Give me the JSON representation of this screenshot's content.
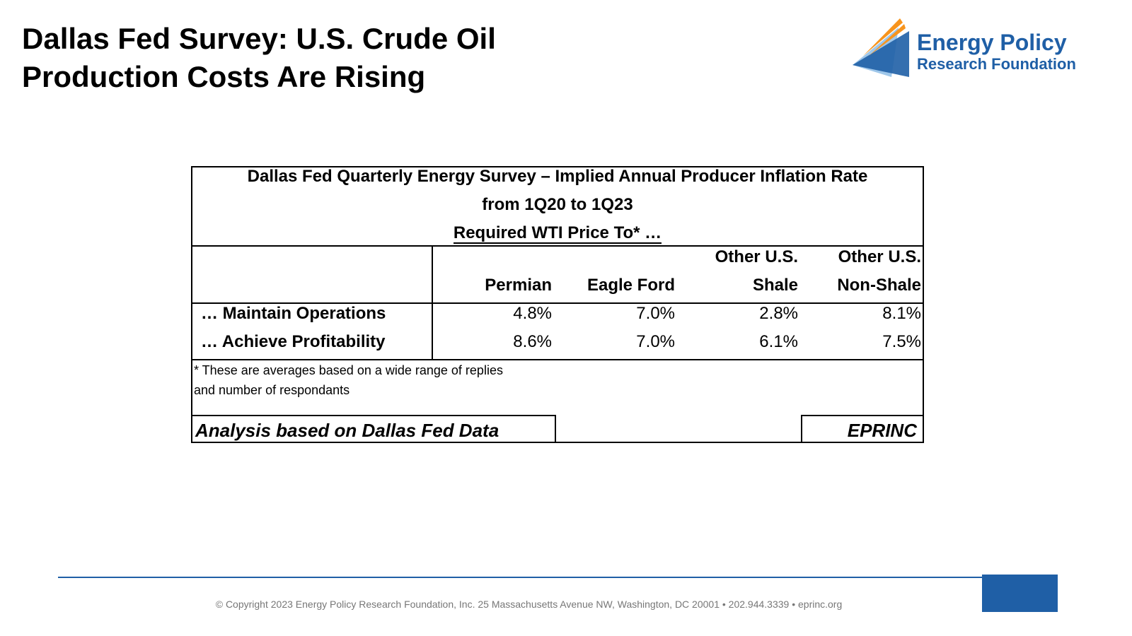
{
  "header": {
    "title_lines": [
      "Dallas Fed Survey: U.S. Crude Oil",
      "Production Costs Are Rising"
    ],
    "logo": [
      "Energy Policy",
      "Research Foundation"
    ]
  },
  "table": {
    "title_lines": [
      "Dallas Fed Quarterly Energy Survey – Implied Annual Producer Inflation Rate",
      "from 1Q20 to 1Q23",
      "Required WTI Price To*  …"
    ],
    "columns": [
      [
        "Permian"
      ],
      [
        "Eagle Ford"
      ],
      [
        "Other U.S.",
        "Shale"
      ],
      [
        "Other U.S.",
        "Non-Shale"
      ]
    ],
    "rows": [
      [
        "… Maintain Operations",
        "4.8%",
        "7.0%",
        "2.8%",
        "8.1%"
      ],
      [
        "… Achieve Profitability",
        "8.6%",
        "7.0%",
        "6.1%",
        "7.5%"
      ]
    ],
    "footnote": [
      "* These are averages based on a wide range of replies",
      "and number of respondants"
    ],
    "analysis": "Analysis based on Dallas Fed Data",
    "source": "EPRINC"
  },
  "footer": {
    "copyright": "© Copyright 2023 Energy Policy Research Foundation, Inc. 25 Massachusetts Avenue NW, Washington, DC 20001 • 202.944.3339 • eprinc.org"
  }
}
